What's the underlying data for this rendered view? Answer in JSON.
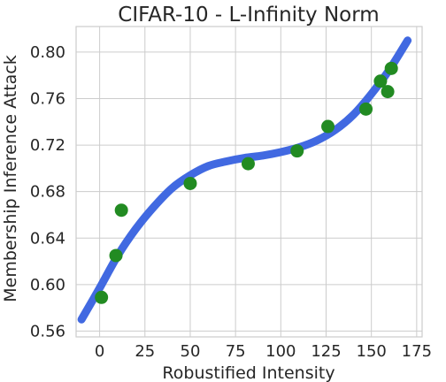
{
  "chart_data": {
    "type": "scatter",
    "title": "CIFAR-10 - L-Infinity Norm",
    "xlabel": "Robustified Intensity",
    "ylabel": "Membership Inference Attack",
    "xlim": [
      -13,
      178
    ],
    "ylim": [
      0.555,
      0.822
    ],
    "xticks": [
      0,
      25,
      50,
      75,
      100,
      125,
      150,
      175
    ],
    "yticks": [
      0.56,
      0.6,
      0.64,
      0.68,
      0.72,
      0.76,
      0.8
    ],
    "ytick_labels": [
      "0.56",
      "0.60",
      "0.64",
      "0.68",
      "0.72",
      "0.76",
      "0.80"
    ],
    "grid": true,
    "colors": {
      "points": "#228b22",
      "fit": "#4169e1"
    },
    "points": [
      {
        "x": 1,
        "y": 0.589
      },
      {
        "x": 9,
        "y": 0.625
      },
      {
        "x": 12,
        "y": 0.664
      },
      {
        "x": 50,
        "y": 0.687
      },
      {
        "x": 82,
        "y": 0.704
      },
      {
        "x": 109,
        "y": 0.715
      },
      {
        "x": 126,
        "y": 0.736
      },
      {
        "x": 147,
        "y": 0.751
      },
      {
        "x": 155,
        "y": 0.775
      },
      {
        "x": 159,
        "y": 0.766
      },
      {
        "x": 161,
        "y": 0.786
      }
    ],
    "fit_curve": {
      "x": [
        -10,
        0,
        10,
        20,
        30,
        40,
        50,
        60,
        70,
        80,
        90,
        100,
        110,
        120,
        130,
        140,
        150,
        160,
        170
      ],
      "y": [
        0.57,
        0.597,
        0.625,
        0.648,
        0.667,
        0.683,
        0.694,
        0.702,
        0.706,
        0.709,
        0.711,
        0.714,
        0.718,
        0.724,
        0.733,
        0.746,
        0.764,
        0.785,
        0.81
      ]
    }
  }
}
